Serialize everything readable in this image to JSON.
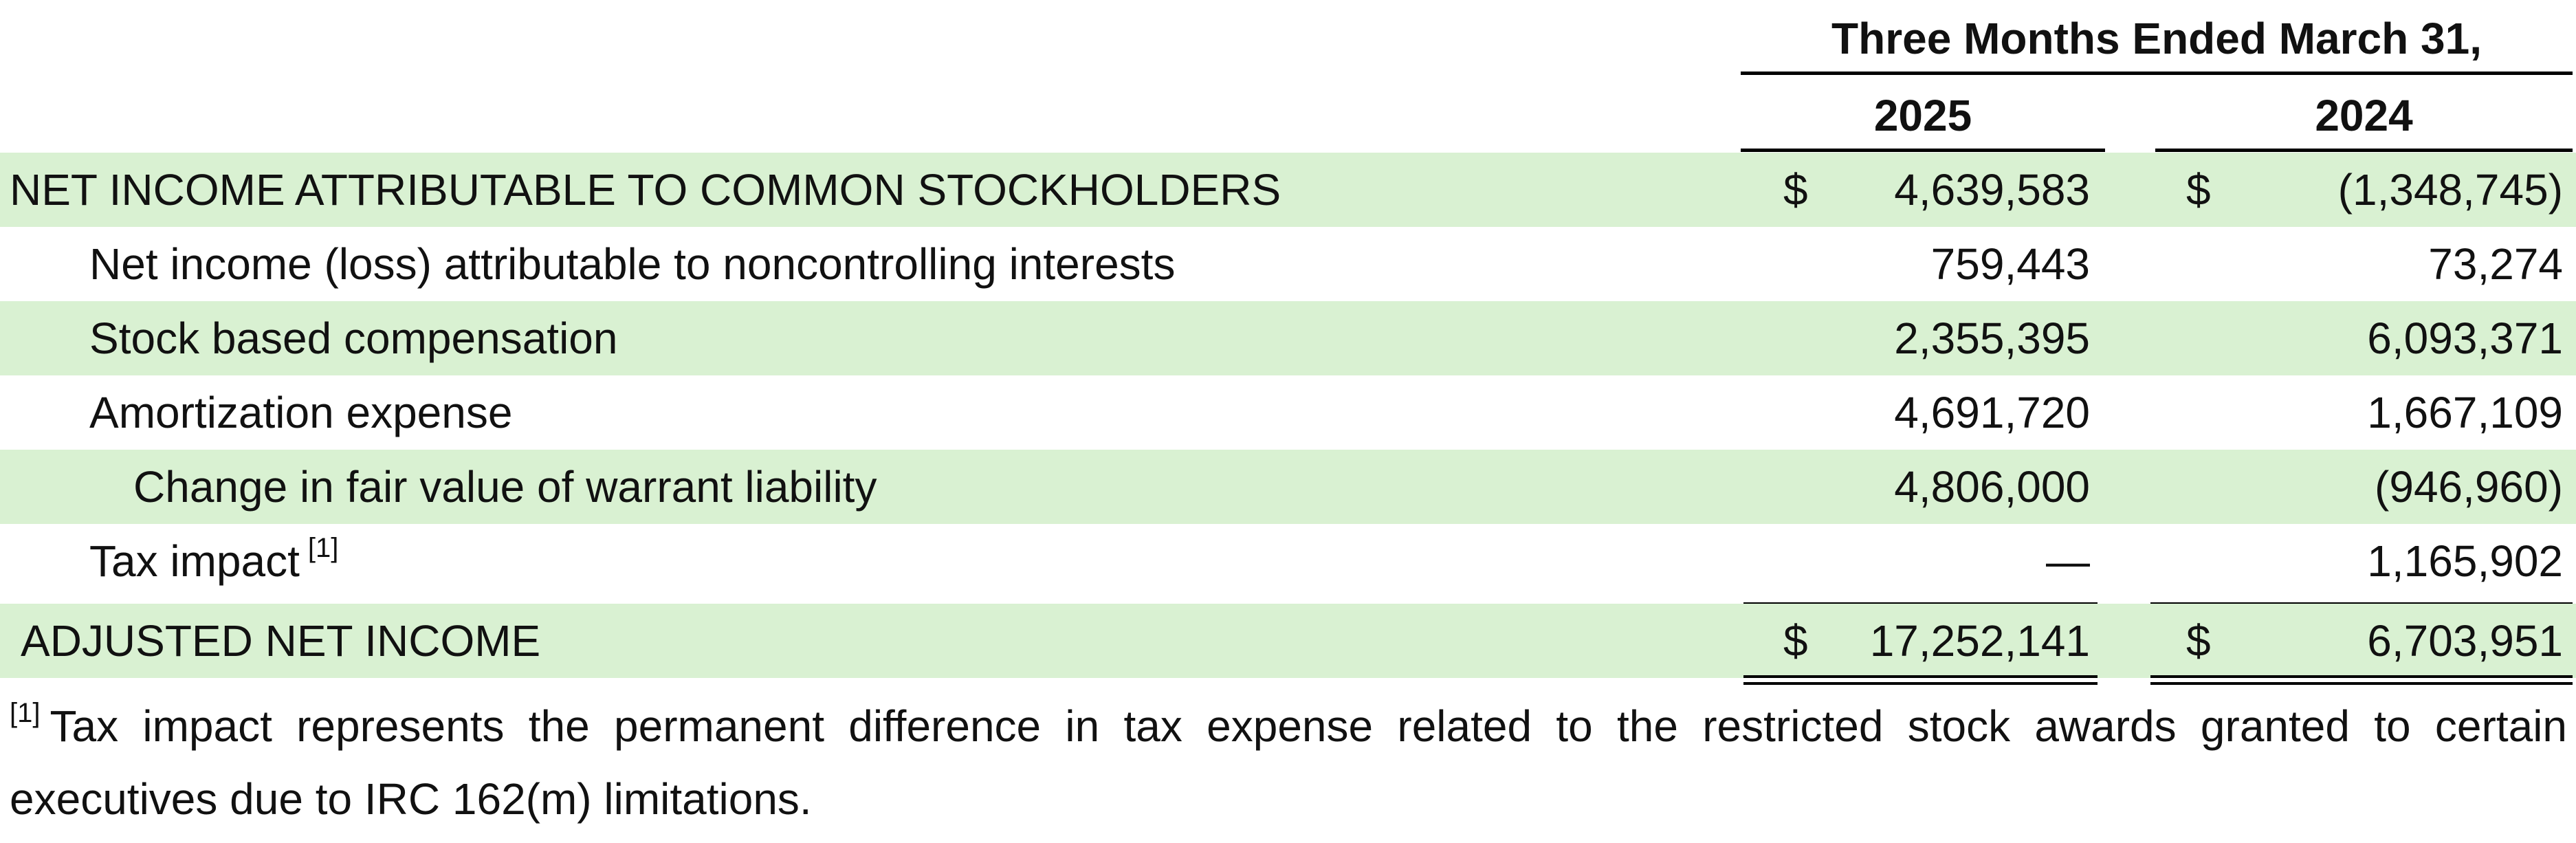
{
  "header": {
    "period": "Three Months Ended March 31,",
    "years": [
      "2025",
      "2024"
    ]
  },
  "rows": [
    {
      "label": "NET INCOME ATTRIBUTABLE TO COMMON STOCKHOLDERS",
      "currency_2025": "$",
      "value_2025": "4,639,583",
      "currency_2024": "$",
      "value_2024": "(1,348,745)"
    },
    {
      "label": "Net income (loss) attributable to noncontrolling interests",
      "value_2025": "759,443",
      "value_2024": "73,274"
    },
    {
      "label": "Stock based compensation",
      "value_2025": "2,355,395",
      "value_2024": "6,093,371"
    },
    {
      "label": "Amortization expense",
      "value_2025": "4,691,720",
      "value_2024": "1,667,109"
    },
    {
      "label": "Change in fair value of warrant liability",
      "value_2025": "4,806,000",
      "value_2024": "(946,960)"
    },
    {
      "label": "Tax impact",
      "footnote_ref": "[1]",
      "value_2025": "—",
      "value_2024": "1,165,902"
    },
    {
      "label": "ADJUSTED NET INCOME",
      "currency_2025": "$",
      "value_2025": "17,252,141",
      "currency_2024": "$",
      "value_2024": "6,703,951"
    }
  ],
  "footnote": {
    "ref": "[1]",
    "text": "Tax impact represents the permanent difference in tax expense related to the restricted stock awards granted to certain executives due to IRC 162(m) limitations."
  },
  "colors": {
    "row_shade": "#d9f1d2",
    "rule": "#000000"
  }
}
